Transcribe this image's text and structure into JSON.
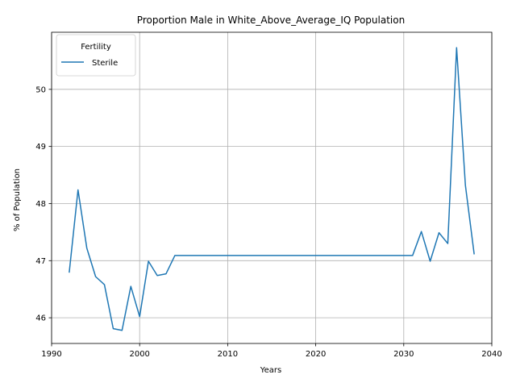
{
  "chart_data": {
    "type": "line",
    "title": "Proportion Male in White_Above_Average_IQ Population",
    "xlabel": "Years",
    "ylabel": "% of Population",
    "xlim": [
      1990,
      2040
    ],
    "ylim": [
      45.55,
      51.0
    ],
    "x_ticks": [
      1990,
      2000,
      2010,
      2020,
      2030,
      2040
    ],
    "y_ticks": [
      46,
      47,
      48,
      49,
      50
    ],
    "grid": true,
    "legend": {
      "title": "Fertility",
      "placement": "top-left"
    },
    "series": [
      {
        "name": "Sterile",
        "color": "#1f77b4",
        "x": [
          1992,
          1993,
          1994,
          1995,
          1996,
          1997,
          1998,
          1999,
          2000,
          2001,
          2002,
          2003,
          2004,
          2005,
          2006,
          2007,
          2008,
          2009,
          2010,
          2011,
          2012,
          2013,
          2014,
          2015,
          2016,
          2017,
          2018,
          2019,
          2020,
          2021,
          2022,
          2023,
          2024,
          2025,
          2026,
          2027,
          2028,
          2029,
          2030,
          2031,
          2032,
          2033,
          2034,
          2035,
          2036,
          2037,
          2038
        ],
        "y": [
          46.79,
          48.24,
          47.22,
          46.72,
          46.58,
          45.81,
          45.78,
          46.55,
          46.02,
          46.99,
          46.74,
          46.77,
          47.09,
          47.09,
          47.09,
          47.09,
          47.09,
          47.09,
          47.09,
          47.09,
          47.09,
          47.09,
          47.09,
          47.09,
          47.09,
          47.09,
          47.09,
          47.09,
          47.09,
          47.09,
          47.09,
          47.09,
          47.09,
          47.09,
          47.09,
          47.09,
          47.09,
          47.09,
          47.09,
          47.09,
          47.51,
          46.99,
          47.49,
          47.3,
          50.73,
          48.32,
          47.11
        ]
      }
    ]
  }
}
